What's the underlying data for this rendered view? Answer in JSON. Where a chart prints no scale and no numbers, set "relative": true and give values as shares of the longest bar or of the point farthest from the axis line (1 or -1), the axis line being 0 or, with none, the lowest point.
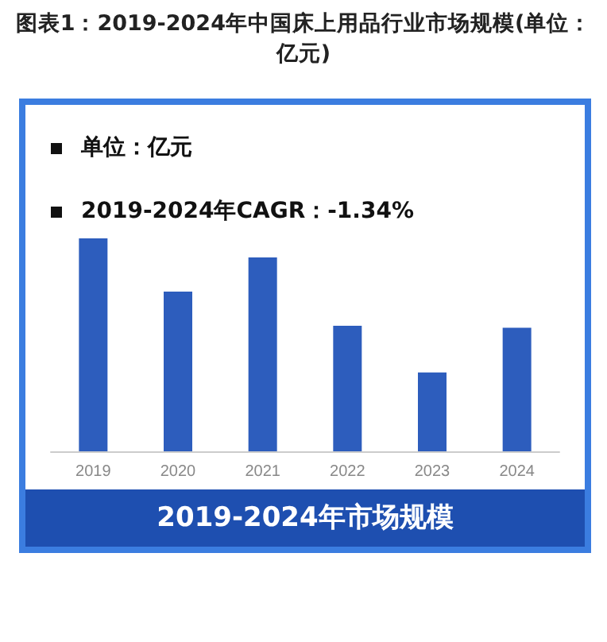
{
  "chart_data": {
    "type": "bar",
    "title": "图表1：2019-2024年中国床上用品行业市场规模(单位：亿元)",
    "xlabel": "2019-2024年市场规模",
    "annotations": [
      "单位：亿元",
      "2019-2024年CAGR：-1.34%"
    ],
    "categories": [
      "2019",
      "2020",
      "2021",
      "2022",
      "2023",
      "2024"
    ],
    "values": [
      1,
      0.75,
      0.91,
      0.59,
      0.37,
      0.58
    ],
    "color": "#2d5dbd",
    "relative": true
  }
}
